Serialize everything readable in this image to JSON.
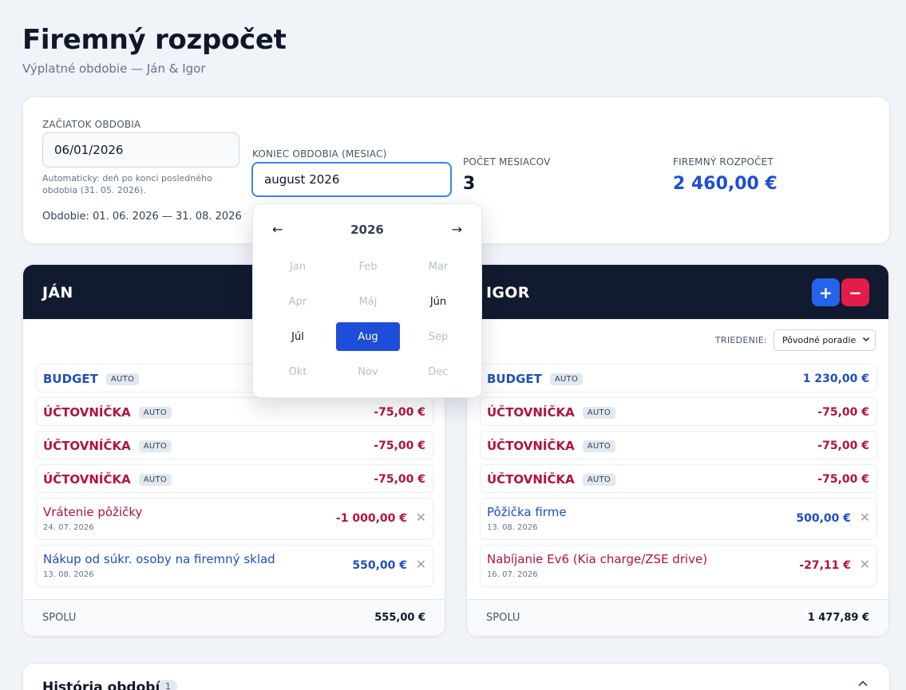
{
  "header": {
    "title": "Firemný rozpočet",
    "subtitle": "Výplatné obdobie — Ján & Igor"
  },
  "period": {
    "start_label": "ZAČIATOK OBDOBIA",
    "start_value": "06/01/2026",
    "start_hint": "Automaticky: deň po konci posledného obdobia (31. 05. 2026).",
    "range_text": "Obdobie: 01. 06. 2026 — 31. 08. 2026",
    "end_label": "KONIEC OBDOBIA (MESIAC)",
    "end_value": "august 2026",
    "months_label": "POČET MESIACOV",
    "months_value": "3",
    "budget_label": "FIREMNÝ ROZPOČET",
    "budget_value": "2 460,00 €"
  },
  "picker": {
    "prev": "←",
    "next": "→",
    "year": "2026",
    "months": [
      {
        "label": "Jan",
        "state": "disabled"
      },
      {
        "label": "Feb",
        "state": "disabled"
      },
      {
        "label": "Mar",
        "state": "disabled"
      },
      {
        "label": "Apr",
        "state": "disabled"
      },
      {
        "label": "Máj",
        "state": "disabled"
      },
      {
        "label": "Jún",
        "state": "enabled"
      },
      {
        "label": "Júl",
        "state": "enabled"
      },
      {
        "label": "Aug",
        "state": "selected"
      },
      {
        "label": "Sep",
        "state": "disabled"
      },
      {
        "label": "Okt",
        "state": "disabled"
      },
      {
        "label": "Nov",
        "state": "disabled"
      },
      {
        "label": "Dec",
        "state": "disabled"
      }
    ]
  },
  "jan": {
    "name": "JÁN",
    "rows": [
      {
        "title": "BUDGET",
        "badge": "AUTO",
        "amount": "",
        "kind": "pos"
      },
      {
        "title": "ÚČTOVNÍČKA",
        "badge": "AUTO",
        "amount": "-75,00 €",
        "kind": "neg"
      },
      {
        "title": "ÚČTOVNÍČKA",
        "badge": "AUTO",
        "amount": "-75,00 €",
        "kind": "neg"
      },
      {
        "title": "ÚČTOVNÍČKA",
        "badge": "AUTO",
        "amount": "-75,00 €",
        "kind": "neg"
      }
    ],
    "items": [
      {
        "title": "Vrátenie pôžičky",
        "date": "24. 07. 2026",
        "amount": "-1 000,00 €",
        "kind": "neg"
      },
      {
        "title": "Nákup od súkr. osoby na firemný sklad",
        "date": "13. 08. 2026",
        "amount": "550,00 €",
        "kind": "pos"
      }
    ],
    "total_label": "SPOLU",
    "total_value": "555,00 €"
  },
  "igor": {
    "name": "IGOR",
    "add_label": "+",
    "remove_label": "−",
    "sort_label": "TRIEDENIE:",
    "sort_value": "Pôvodné poradie",
    "rows": [
      {
        "title": "BUDGET",
        "badge": "AUTO",
        "amount": "1 230,00 €",
        "kind": "pos"
      },
      {
        "title": "ÚČTOVNÍČKA",
        "badge": "AUTO",
        "amount": "-75,00 €",
        "kind": "neg"
      },
      {
        "title": "ÚČTOVNÍČKA",
        "badge": "AUTO",
        "amount": "-75,00 €",
        "kind": "neg"
      },
      {
        "title": "ÚČTOVNÍČKA",
        "badge": "AUTO",
        "amount": "-75,00 €",
        "kind": "neg"
      }
    ],
    "items": [
      {
        "title": "Pôžička firme",
        "date": "13. 08. 2026",
        "amount": "500,00 €",
        "kind": "pos"
      },
      {
        "title": "Nabíjanie Ev6 (Kia charge/ZSE drive)",
        "date": "16. 07. 2026",
        "amount": "-27,11 €",
        "kind": "neg"
      }
    ],
    "total_label": "SPOLU",
    "total_value": "1 477,89 €"
  },
  "history": {
    "title": "História období",
    "count": "1"
  },
  "delete_glyph": "✕",
  "colors": {
    "header_bg": "#111a2e",
    "accent_blue": "#1d4ed8",
    "positive": "#1e4fbf",
    "negative": "#b3123f",
    "add_button": "#2563eb",
    "remove_button": "#e11d48"
  }
}
